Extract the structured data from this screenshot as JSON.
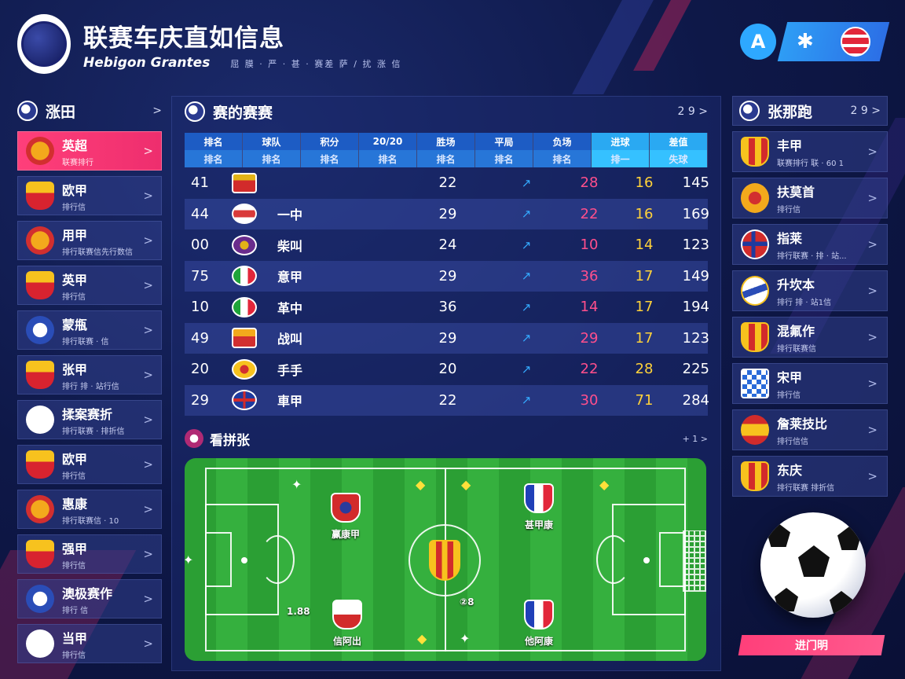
{
  "header": {
    "title": "联赛车庆直如信息",
    "subtitle": "Hebigon Grantes",
    "meta": "屈 膜 · 严 · 甚 · 赛差 萨 / 扰 涨 信"
  },
  "top_right": {
    "icon_a": "A",
    "star": "✱"
  },
  "left_panel": {
    "title": "涨田",
    "items": [
      {
        "name": "英超",
        "sub": "联赛排行",
        "icon": "badge-round",
        "active": true
      },
      {
        "name": "欧甲",
        "sub": "排行信",
        "icon": "badge-shield"
      },
      {
        "name": "用甲",
        "sub": "排行联赛信先行数信",
        "icon": "badge-round"
      },
      {
        "name": "英甲",
        "sub": "排行信",
        "icon": "badge-shield"
      },
      {
        "name": "蒙甁",
        "sub": "排行联赛 · 信",
        "icon": "badge-blue"
      },
      {
        "name": "张甲",
        "sub": "排行 排 · 站行信",
        "icon": "badge-shield"
      },
      {
        "name": "揉案赛折",
        "sub": "排行联赛 · 排折信",
        "icon": "badge-ball"
      },
      {
        "name": "欧甲",
        "sub": "排行信",
        "icon": "badge-shield"
      },
      {
        "name": "惠康",
        "sub": "排行联赛信 · 10",
        "icon": "badge-round"
      },
      {
        "name": "强甲",
        "sub": "排行信",
        "icon": "badge-shield"
      },
      {
        "name": "澳极赛作",
        "sub": "排行 信",
        "icon": "badge-blue"
      },
      {
        "name": "当甲",
        "sub": "排行信",
        "icon": "badge-ball"
      }
    ]
  },
  "center": {
    "title": "赛的赛赛",
    "right": "2 9 >",
    "table_headers": [
      {
        "top": "排名",
        "bottom": "排名"
      },
      {
        "top": "球队",
        "bottom": "排名"
      },
      {
        "top": "积分",
        "bottom": "排名"
      },
      {
        "top": "20/20",
        "bottom": "排名"
      },
      {
        "top": "胜场",
        "bottom": "排名"
      },
      {
        "top": "平局",
        "bottom": "排名"
      },
      {
        "top": "负场",
        "bottom": "排名"
      },
      {
        "top": "进球",
        "bottom": "排一",
        "hl": true
      },
      {
        "top": "差值",
        "bottom": "失球",
        "hl": true
      }
    ],
    "rows": [
      {
        "rank": "41",
        "flag": "f-red",
        "team": "",
        "played": "22",
        "trend": "↗",
        "w": "28",
        "d": "16",
        "total": "145"
      },
      {
        "rank": "44",
        "flag": "f-stripe",
        "team": "一中",
        "played": "29",
        "trend": "↗",
        "w": "22",
        "d": "16",
        "total": "169"
      },
      {
        "rank": "00",
        "flag": "f-purple",
        "team": "柴叫",
        "played": "24",
        "trend": "↗",
        "w": "10",
        "d": "14",
        "total": "123"
      },
      {
        "rank": "75",
        "flag": "f-ita",
        "team": "意甲",
        "played": "29",
        "trend": "↗",
        "w": "36",
        "d": "17",
        "total": "149"
      },
      {
        "rank": "10",
        "flag": "f-ita",
        "team": "革中",
        "played": "36",
        "trend": "↗",
        "w": "14",
        "d": "17",
        "total": "194"
      },
      {
        "rank": "49",
        "flag": "f-orange",
        "team": "战叫",
        "played": "29",
        "trend": "↗",
        "w": "29",
        "d": "17",
        "total": "123"
      },
      {
        "rank": "20",
        "flag": "f-yellow",
        "team": "手手",
        "played": "20",
        "trend": "↗",
        "w": "22",
        "d": "28",
        "total": "225"
      },
      {
        "rank": "29",
        "flag": "f-uk",
        "team": "車甲",
        "played": "22",
        "trend": "↗",
        "w": "30",
        "d": "71",
        "total": "284"
      }
    ],
    "pitch_section": {
      "title": "看拼张",
      "right": "+ 1 >",
      "players": [
        {
          "name": "赢康甲"
        },
        {
          "name": "甚甲康"
        },
        {
          "name": "信阿出"
        },
        {
          "name": "他阿康"
        }
      ],
      "labels": [
        "1.88",
        "②8"
      ]
    }
  },
  "right_panel": {
    "title": "张那跑",
    "right": "2 9 >",
    "items": [
      {
        "name": "丰甲",
        "sub": "联赛排行 联 · 60 1",
        "icon": "ri-shield"
      },
      {
        "name": "扶莫首",
        "sub": "排行信",
        "icon": "ri-round"
      },
      {
        "name": "指莱",
        "sub": "排行联赛 · 排 · 站...",
        "icon": "ri-norway"
      },
      {
        "name": "升坎本",
        "sub": "排行 排 · 站1信",
        "icon": "ri-blue"
      },
      {
        "name": "混氟作",
        "sub": "排行联赛信",
        "icon": "ri-shield"
      },
      {
        "name": "宋甲",
        "sub": "排行信",
        "icon": "ri-check"
      },
      {
        "name": "詹莱技比",
        "sub": "排行信信",
        "icon": "ri-spain"
      },
      {
        "name": "东庆",
        "sub": "排行联赛 排折信",
        "icon": "ri-shield"
      }
    ]
  },
  "cta": {
    "label": "进门明"
  }
}
